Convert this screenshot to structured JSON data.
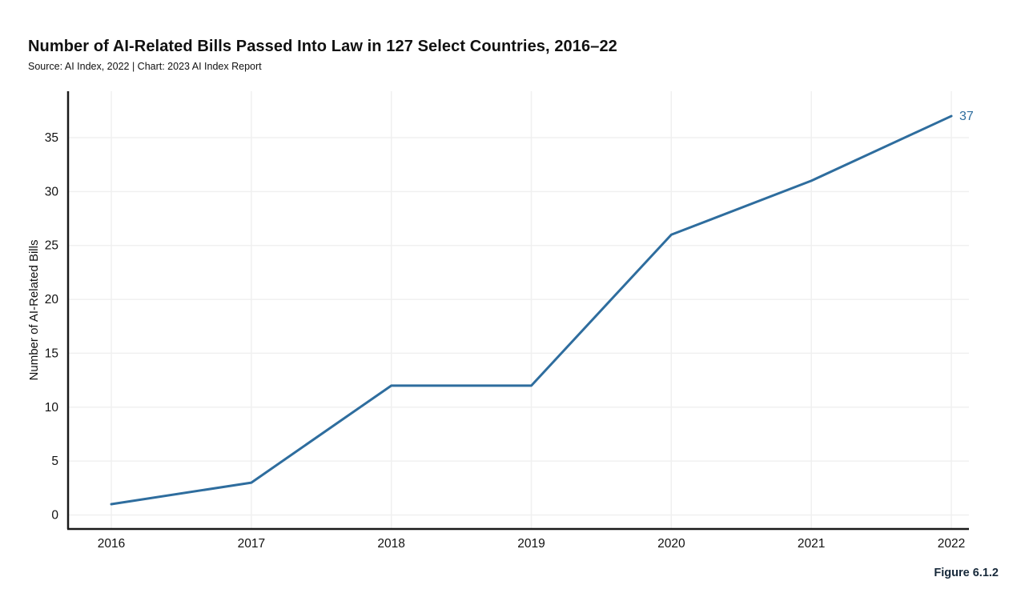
{
  "header": {
    "title": "Number of AI-Related Bills Passed Into Law in 127 Select Countries, 2016–22",
    "subtitle": "Source: AI Index, 2022 | Chart: 2023 AI Index Report"
  },
  "figure_label": "Figure 6.1.2",
  "colors": {
    "line": "#2e6d9e",
    "end_label": "#2e6d9e",
    "axis": "#1a1a1a",
    "grid": "#f0f0f0",
    "tick_text": "#111111",
    "figure_label": "#17293a"
  },
  "chart_data": {
    "type": "line",
    "title": "Number of AI-Related Bills Passed Into Law in 127 Select Countries, 2016–22",
    "subtitle": "Source: AI Index, 2022 | Chart: 2023 AI Index Report",
    "x": [
      "2016",
      "2017",
      "2018",
      "2019",
      "2020",
      "2021",
      "2022"
    ],
    "series": [
      {
        "name": "Number of AI-Related Bills",
        "values": [
          1,
          3,
          12,
          12,
          26,
          31,
          37
        ]
      }
    ],
    "xlabel": "",
    "ylabel": "Number of AI-Related Bills",
    "ylim": [
      0,
      39.2
    ],
    "yticks": [
      0,
      5,
      10,
      15,
      20,
      25,
      30,
      35
    ],
    "grid": true,
    "legend": "none",
    "end_label": "37"
  }
}
